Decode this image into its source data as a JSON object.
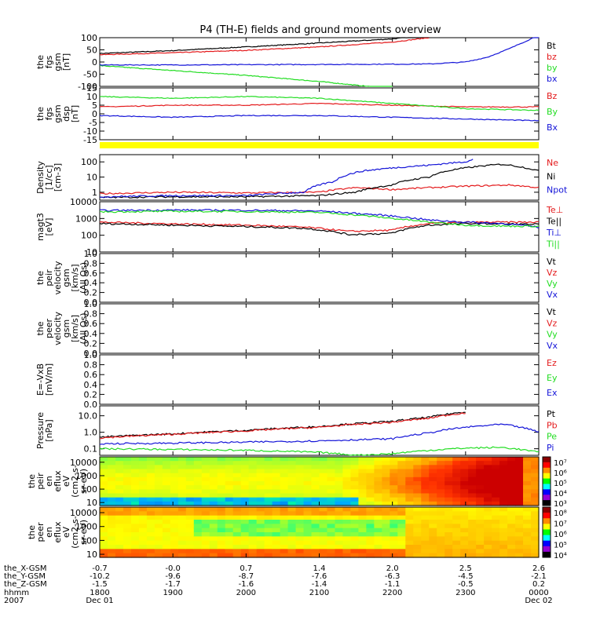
{
  "title": "P4 (TH-E) fields and ground moments overview",
  "colors": {
    "black": "#000000",
    "red": "#e41a1c",
    "green": "#22dd22",
    "blue": "#1414d8",
    "yellow": "#ffff00"
  },
  "chart_data": [
    {
      "type": "line",
      "ylabel": [
        "the",
        "fgs",
        "gsm",
        "[nT]"
      ],
      "yticks": [
        "100",
        "50",
        "0",
        "-50",
        "-100"
      ],
      "ylim": [
        -100,
        100
      ],
      "series": [
        {
          "name": "Bt",
          "color": "black",
          "x": [
            18.0,
            19.0,
            20.0,
            21.0,
            22.0,
            22.5
          ],
          "values": [
            35,
            47,
            62,
            78,
            95,
            110
          ]
        },
        {
          "name": "bz",
          "color": "red",
          "x": [
            18.0,
            19.0,
            20.0,
            21.0,
            22.0,
            22.5
          ],
          "values": [
            30,
            38,
            48,
            62,
            82,
            100
          ]
        },
        {
          "name": "by",
          "color": "green",
          "x": [
            18.0,
            18.5,
            19.0,
            20.0,
            21.0,
            21.5,
            22.0
          ],
          "values": [
            -15,
            -25,
            -35,
            -55,
            -80,
            -95,
            -110
          ]
        },
        {
          "name": "bx",
          "color": "blue",
          "x": [
            18.0,
            19.0,
            20.0,
            21.0,
            22.0,
            22.5,
            23.0,
            23.3,
            23.6,
            24.0
          ],
          "values": [
            -12,
            -12,
            -11,
            -10,
            -9,
            -8,
            0,
            20,
            55,
            110
          ]
        }
      ]
    },
    {
      "type": "line",
      "ylabel": [
        "the",
        "fgs",
        "gsm",
        "dsp",
        "[nT]"
      ],
      "yticks": [
        "15",
        "10",
        "5",
        "0",
        "-5",
        "-10",
        "-15"
      ],
      "ylim": [
        -15,
        15
      ],
      "series": [
        {
          "name": "Bz",
          "color": "red",
          "x": [
            18.0,
            19.0,
            20.0,
            21.0,
            22.0,
            23.0,
            24.0
          ],
          "values": [
            4,
            5,
            5,
            6,
            5,
            4,
            4
          ]
        },
        {
          "name": "By",
          "color": "green",
          "x": [
            18.0,
            19.0,
            20.0,
            21.0,
            22.0,
            23.0,
            24.0
          ],
          "values": [
            10,
            9,
            10,
            9,
            6,
            3,
            2
          ]
        },
        {
          "name": "Bx",
          "color": "blue",
          "x": [
            18.0,
            19.0,
            20.0,
            21.0,
            22.0,
            23.0,
            24.0
          ],
          "values": [
            -1,
            -2,
            -1,
            -1,
            -2,
            -3,
            -4
          ]
        }
      ]
    },
    {
      "type": "line",
      "yscale": "log",
      "ylabel": [
        "Density",
        "[1/cc]",
        "[cm-3]"
      ],
      "yticks": [
        "100",
        "10",
        "1"
      ],
      "ylim": [
        0.3,
        300
      ],
      "series": [
        {
          "name": "Ne",
          "color": "red",
          "x": [
            18.0,
            19.0,
            20.0,
            21.0,
            21.5,
            22.0,
            23.0,
            23.6,
            24.0
          ],
          "values": [
            0.8,
            1.0,
            0.9,
            1.0,
            2.0,
            1.5,
            2.5,
            3.0,
            2.0
          ]
        },
        {
          "name": "Ni",
          "color": "black",
          "x": [
            18.0,
            19.0,
            20.0,
            21.0,
            21.5,
            22.0,
            22.5,
            23.0,
            23.5,
            24.0
          ],
          "values": [
            0.45,
            0.5,
            0.5,
            0.6,
            1.0,
            3.0,
            10,
            40,
            70,
            25
          ]
        },
        {
          "name": "Npot",
          "color": "blue",
          "x": [
            18.0,
            19.0,
            20.0,
            20.8,
            21.2,
            21.6,
            22.0,
            22.5,
            23.0,
            23.1
          ],
          "values": [
            0.5,
            0.6,
            0.6,
            1.0,
            5,
            25,
            40,
            60,
            100,
            150
          ]
        }
      ]
    },
    {
      "type": "line",
      "yscale": "log",
      "ylabel": [
        "magt3",
        "[eV]"
      ],
      "yticks": [
        "10000",
        "1000",
        "100",
        "10"
      ],
      "ylim": [
        10,
        10000
      ],
      "series": [
        {
          "name": "Te⊥",
          "color": "red",
          "x": [
            18.0,
            19.0,
            20.0,
            20.8,
            21.4,
            22.0,
            22.5,
            23.0,
            24.0
          ],
          "values": [
            600,
            480,
            400,
            300,
            170,
            200,
            500,
            600,
            600
          ]
        },
        {
          "name": "Te||",
          "color": "black",
          "x": [
            18.0,
            19.0,
            20.0,
            20.8,
            21.4,
            22.0,
            22.5,
            23.0,
            24.0
          ],
          "values": [
            500,
            400,
            330,
            260,
            110,
            130,
            400,
            500,
            450
          ]
        },
        {
          "name": "Ti⊥",
          "color": "blue",
          "x": [
            18.0,
            19.0,
            20.0,
            21.0,
            21.5,
            22.0,
            22.5,
            23.0,
            23.5,
            24.0
          ],
          "values": [
            3000,
            3200,
            3100,
            2800,
            2000,
            1400,
            800,
            600,
            500,
            300
          ]
        },
        {
          "name": "Ti||",
          "color": "green",
          "x": [
            18.0,
            19.0,
            20.0,
            21.0,
            21.5,
            22.0,
            22.5,
            23.0,
            23.5,
            24.0
          ],
          "values": [
            2500,
            2700,
            2600,
            2300,
            1600,
            1000,
            600,
            400,
            350,
            350
          ]
        }
      ]
    },
    {
      "type": "line",
      "ylabel": [
        "the",
        "peir",
        "velocity",
        "gsm",
        "[km/s]",
        "(All Qs)"
      ],
      "yticks": [
        "1.0",
        "0.8",
        "0.6",
        "0.4",
        "0.2",
        "0.0"
      ],
      "ylim": [
        0,
        1
      ],
      "series": [
        {
          "name": "Vt",
          "color": "black"
        },
        {
          "name": "Vz",
          "color": "red"
        },
        {
          "name": "Vy",
          "color": "green"
        },
        {
          "name": "Vx",
          "color": "blue"
        }
      ]
    },
    {
      "type": "line",
      "ylabel": [
        "the",
        "peer",
        "velocity",
        "gsm",
        "[km/s]",
        "(All Qs)"
      ],
      "yticks": [
        "1.0",
        "0.8",
        "0.6",
        "0.4",
        "0.2",
        "0.0"
      ],
      "ylim": [
        0,
        1
      ],
      "series": [
        {
          "name": "Vt",
          "color": "black"
        },
        {
          "name": "Vz",
          "color": "red"
        },
        {
          "name": "Vy",
          "color": "green"
        },
        {
          "name": "Vx",
          "color": "blue"
        }
      ]
    },
    {
      "type": "line",
      "ylabel": [
        "E=-VxB",
        "[mV/m]"
      ],
      "yticks": [
        "1.0",
        "0.8",
        "0.6",
        "0.4",
        "0.2",
        "0.0"
      ],
      "ylim": [
        0,
        1
      ],
      "series": [
        {
          "name": "Ez",
          "color": "red"
        },
        {
          "name": "Ey",
          "color": "green"
        },
        {
          "name": "Ex",
          "color": "blue"
        }
      ]
    },
    {
      "type": "line",
      "yscale": "log",
      "ylabel": [
        "Pressure",
        "[nPa]"
      ],
      "yticks": [
        "10.0",
        "1.0",
        "0.1"
      ],
      "ylim": [
        0.04,
        40
      ],
      "series": [
        {
          "name": "Pt",
          "color": "black",
          "x": [
            18.0,
            19.0,
            20.0,
            21.0,
            22.0,
            22.5,
            23.0
          ],
          "values": [
            0.5,
            0.8,
            1.3,
            2.2,
            4.5,
            8,
            17
          ]
        },
        {
          "name": "Pb",
          "color": "red",
          "x": [
            18.0,
            19.0,
            20.0,
            21.0,
            22.0,
            22.5,
            23.0
          ],
          "values": [
            0.45,
            0.75,
            1.2,
            2.0,
            4.0,
            7,
            15
          ]
        },
        {
          "name": "Pe",
          "color": "green",
          "x": [
            18.0,
            19.0,
            20.0,
            21.0,
            21.5,
            22.0,
            22.5,
            23.0,
            23.5,
            24.0
          ],
          "values": [
            0.1,
            0.09,
            0.08,
            0.06,
            0.04,
            0.05,
            0.08,
            0.11,
            0.12,
            0.06
          ]
        },
        {
          "name": "Pi",
          "color": "blue",
          "x": [
            18.0,
            19.0,
            20.0,
            21.0,
            22.0,
            22.5,
            23.0,
            23.5,
            24.0
          ],
          "values": [
            0.2,
            0.22,
            0.25,
            0.3,
            0.4,
            0.9,
            2.0,
            3.0,
            1.0
          ]
        }
      ]
    },
    {
      "type": "heatmap",
      "ylabel": [
        "the",
        "peir",
        "en",
        "eflux",
        "eV",
        "(cm2-s-",
        "sr-eV)"
      ],
      "yticks": [
        "10000",
        "1000",
        "100",
        "10"
      ],
      "colorbar_ticks": [
        "10⁷",
        "10⁶",
        "10⁵",
        "10⁴",
        "10³"
      ]
    },
    {
      "type": "heatmap",
      "ylabel": [
        "the",
        "peer",
        "en",
        "eflux",
        "eV",
        "(cm2-s-",
        "sr-eV)"
      ],
      "yticks": [
        "10000",
        "1000",
        "100",
        "10"
      ],
      "colorbar_ticks": [
        "10⁸",
        "10⁷",
        "10⁶",
        "10⁵",
        "10⁴"
      ]
    }
  ],
  "xaxis": {
    "rows": [
      {
        "label": "the_X-GSM",
        "values": [
          "-0.7",
          "-0.0",
          "0.7",
          "1.4",
          "2.0",
          "2.5",
          "2.6"
        ]
      },
      {
        "label": "the_Y-GSM",
        "values": [
          "-10.2",
          "-9.6",
          "-8.7",
          "-7.6",
          "-6.3",
          "-4.5",
          "-2.1"
        ]
      },
      {
        "label": "the_Z-GSM",
        "values": [
          "-1.5",
          "-1.7",
          "-1.6",
          "-1.4",
          "-1.1",
          "-0.5",
          "0.2"
        ]
      },
      {
        "label": "hhmm",
        "values": [
          "1800",
          "1900",
          "2000",
          "2100",
          "2200",
          "2300",
          "0000"
        ]
      },
      {
        "label": "2007",
        "values": [
          "Dec 01",
          "",
          "",
          "",
          "",
          "",
          "Dec 02"
        ]
      }
    ]
  }
}
